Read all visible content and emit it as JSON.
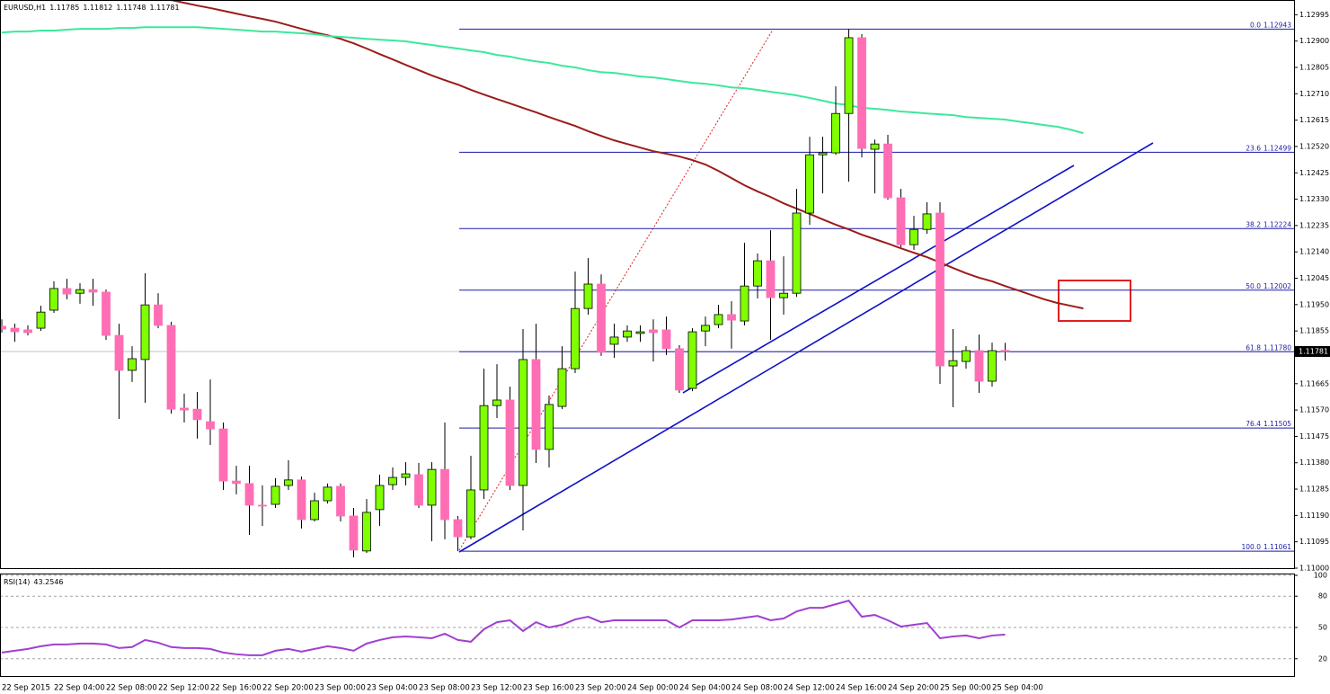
{
  "chart_data": [
    {
      "type": "candlestick",
      "symbol": "EURUSD,H1",
      "categories": [
        "22 Sep 2015",
        null,
        null,
        null,
        "22 Sep 04:00",
        null,
        null,
        null,
        "22 Sep 08:00",
        null,
        null,
        null,
        "22 Sep 12:00",
        null,
        null,
        null,
        "22 Sep 16:00",
        null,
        null,
        null,
        "22 Sep 20:00",
        null,
        null,
        null,
        "23 Sep 00:00",
        null,
        null,
        null,
        "23 Sep 04:00",
        null,
        null,
        null,
        "23 Sep 08:00",
        null,
        null,
        null,
        "23 Sep 12:00",
        null,
        null,
        null,
        "23 Sep 16:00",
        null,
        null,
        null,
        "23 Sep 20:00",
        null,
        null,
        null,
        "24 Sep 00:00",
        null,
        null,
        null,
        "24 Sep 04:00",
        null,
        null,
        null,
        "24 Sep 08:00",
        null,
        null,
        null,
        "24 Sep 12:00",
        null,
        null,
        null,
        "24 Sep 16:00",
        null,
        null,
        null,
        "24 Sep 20:00",
        null,
        null,
        null,
        "25 Sep 00:00",
        null,
        null,
        null,
        "25 Sep 04:00",
        null,
        null,
        null,
        null,
        null,
        null,
        null
      ],
      "open": [
        1.11872,
        1.11865,
        1.11859,
        1.11865,
        1.1193,
        1.12008,
        1.11991,
        1.12004,
        1.11995,
        1.11839,
        1.11713,
        1.11752,
        1.11949,
        1.11875,
        1.11577,
        1.11573,
        1.11528,
        1.11502,
        1.11314,
        1.11305,
        1.11227,
        1.1123,
        1.11298,
        1.11318,
        1.11175,
        1.11243,
        1.11295,
        1.11188,
        1.11062,
        1.11211,
        1.11301,
        1.11327,
        1.11337,
        1.11227,
        1.11356,
        1.11175,
        1.11113,
        1.11282,
        1.11586,
        1.11606,
        1.11298,
        1.11752,
        1.11428,
        1.11583,
        1.11719,
        1.11936,
        1.12024,
        1.11807,
        1.11833,
        1.11846,
        1.11859,
        1.11859,
        1.11791,
        1.11648,
        1.11855,
        1.11878,
        1.11914,
        1.11891,
        1.12017,
        1.12108,
        1.11975,
        1.11991,
        1.1228,
        1.1249,
        1.12497,
        1.12639,
        1.12912,
        1.1251,
        1.12529,
        1.12335,
        1.12166,
        1.12221,
        1.1228,
        1.11729,
        1.11745,
        1.11784,
        1.11674,
        1.11785,
        null,
        null,
        null,
        null,
        null,
        null
      ],
      "high": [
        1.11897,
        1.11881,
        1.11875,
        1.11946,
        1.12034,
        1.12043,
        1.12027,
        1.12043,
        1.12004,
        1.11881,
        1.118,
        1.12063,
        1.11991,
        1.11888,
        1.11629,
        1.11635,
        1.1168,
        1.11525,
        1.11369,
        1.11369,
        1.11298,
        1.11324,
        1.11389,
        1.1133,
        1.11272,
        1.11305,
        1.11305,
        1.11217,
        1.11249,
        1.11337,
        1.11363,
        1.11382,
        1.11379,
        1.11382,
        1.11525,
        1.11188,
        1.11405,
        1.11719,
        1.11735,
        1.11654,
        1.11862,
        1.11881,
        1.11622,
        1.118,
        1.12069,
        1.12118,
        1.12059,
        1.11881,
        1.11875,
        1.11875,
        1.11897,
        1.11907,
        1.11804,
        1.11865,
        1.11907,
        1.11949,
        1.11962,
        1.12173,
        1.12134,
        1.12218,
        1.12124,
        1.12367,
        1.12555,
        1.12555,
        1.12737,
        1.12943,
        1.12925,
        1.12545,
        1.12562,
        1.12367,
        1.1227,
        1.12319,
        1.12319,
        1.11862,
        1.118,
        1.11842,
        1.11813,
        1.11812,
        null,
        null,
        null,
        null,
        null,
        null
      ],
      "low": [
        1.11849,
        1.11816,
        1.11839,
        1.11855,
        1.1192,
        1.11969,
        1.11953,
        1.11946,
        1.11823,
        1.11538,
        1.11671,
        1.11596,
        1.11865,
        1.11557,
        1.11525,
        1.11467,
        1.11444,
        1.11282,
        1.11266,
        1.1112,
        1.11152,
        1.11217,
        1.11282,
        1.11143,
        1.11168,
        1.11233,
        1.11168,
        1.11039,
        1.11055,
        1.11152,
        1.11282,
        1.11298,
        1.11217,
        1.11097,
        1.11104,
        1.11061,
        1.11104,
        1.11249,
        1.11541,
        1.11282,
        1.11136,
        1.11379,
        1.11363,
        1.11573,
        1.11703,
        1.11914,
        1.11765,
        1.11758,
        1.11816,
        1.11816,
        1.11745,
        1.11768,
        1.11632,
        1.11638,
        1.118,
        1.11865,
        1.11791,
        1.11875,
        1.11972,
        1.11823,
        1.11914,
        1.11978,
        1.12238,
        1.12351,
        1.1249,
        1.12393,
        1.12481,
        1.12351,
        1.12328,
        1.12157,
        1.12147,
        1.12205,
        1.11664,
        1.1158,
        1.11719,
        1.11632,
        1.11654,
        1.11748,
        null,
        null,
        null,
        null,
        null,
        null
      ],
      "close": [
        1.11862,
        1.11852,
        1.11849,
        1.11923,
        1.12008,
        1.11988,
        1.12004,
        1.11995,
        1.11839,
        1.11713,
        1.11755,
        1.11949,
        1.11875,
        1.11573,
        1.1157,
        1.11535,
        1.11502,
        1.11314,
        1.11305,
        1.11227,
        1.11224,
        1.11295,
        1.11318,
        1.11175,
        1.11243,
        1.11292,
        1.11188,
        1.11065,
        1.11201,
        1.11298,
        1.11327,
        1.1134,
        1.11227,
        1.11356,
        1.11175,
        1.11113,
        1.11282,
        1.11586,
        1.11606,
        1.11298,
        1.11752,
        1.11428,
        1.1159,
        1.11719,
        1.11936,
        1.12024,
        1.11778,
        1.11833,
        1.11855,
        1.11852,
        1.11849,
        1.11791,
        1.11642,
        1.11852,
        1.11875,
        1.11914,
        1.11894,
        1.12017,
        1.12108,
        1.11975,
        1.11991,
        1.1228,
        1.1249,
        1.12497,
        1.12639,
        1.12912,
        1.12513,
        1.12529,
        1.12335,
        1.12166,
        1.12221,
        1.12277,
        1.11729,
        1.11748,
        1.11784,
        1.11674,
        1.11784,
        1.11781,
        null,
        null,
        null,
        null,
        null,
        null
      ],
      "up_color": "#80ff00",
      "down_color": "#ff6eb4",
      "wick_color": "#000000",
      "series": [
        {
          "color": "#9b1c1c",
          "values": [
            null,
            null,
            null,
            null,
            null,
            null,
            null,
            null,
            null,
            null,
            null,
            null,
            null,
            1.13048,
            1.13038,
            1.13028,
            1.13019,
            1.13009,
            1.12999,
            1.12989,
            1.1298,
            1.1297,
            1.12957,
            1.12944,
            1.12931,
            1.12921,
            1.12908,
            1.12892,
            1.12873,
            1.12853,
            1.12834,
            1.12814,
            1.12795,
            1.12776,
            1.12759,
            1.12743,
            1.12724,
            1.12707,
            1.12691,
            1.12675,
            1.12659,
            1.12643,
            1.12626,
            1.1261,
            1.12594,
            1.12575,
            1.12558,
            1.12542,
            1.12529,
            1.12516,
            1.12503,
            1.12494,
            1.12484,
            1.12471,
            1.12455,
            1.12432,
            1.12406,
            1.1238,
            1.12358,
            1.12338,
            1.12315,
            1.12296,
            1.12277,
            1.12257,
            1.12238,
            1.12221,
            1.12202,
            1.12186,
            1.1217,
            1.12153,
            1.12137,
            1.12121,
            1.12102,
            1.12082,
            1.12063,
            1.12047,
            1.12034,
            1.12017,
            1.12001,
            1.11985,
            1.11969,
            1.11956,
            1.11946,
            1.11936
          ]
        },
        {
          "color": "#3de89a",
          "values": [
            1.12931,
            1.12934,
            1.12934,
            1.12938,
            1.12938,
            1.12941,
            1.12944,
            1.12944,
            1.12944,
            1.12947,
            1.12947,
            1.1295,
            1.1295,
            1.1295,
            1.1295,
            1.1295,
            1.12947,
            1.12944,
            1.12941,
            1.12938,
            1.12934,
            1.12934,
            1.12931,
            1.12928,
            1.12925,
            1.12918,
            1.12915,
            1.12912,
            1.12908,
            1.12905,
            1.12902,
            1.12899,
            1.12892,
            1.12886,
            1.12879,
            1.12873,
            1.12866,
            1.1286,
            1.1285,
            1.12844,
            1.12834,
            1.12827,
            1.12821,
            1.12811,
            1.12805,
            1.12795,
            1.12788,
            1.12785,
            1.12779,
            1.12772,
            1.12769,
            1.12763,
            1.12756,
            1.1275,
            1.12746,
            1.1274,
            1.12733,
            1.1273,
            1.12724,
            1.12717,
            1.12711,
            1.12704,
            1.12695,
            1.12685,
            1.12675,
            1.12669,
            1.12659,
            1.12656,
            1.12652,
            1.12646,
            1.12643,
            1.12639,
            1.12636,
            1.12633,
            1.12626,
            1.12623,
            1.1262,
            1.12617,
            1.1261,
            1.12604,
            1.12597,
            1.12591,
            1.12581,
            1.12568
          ]
        }
      ],
      "fib_levels": [
        {
          "level": "0.0",
          "value": 1.12943
        },
        {
          "level": "23.6",
          "value": 1.12499
        },
        {
          "level": "38.2",
          "value": 1.12224
        },
        {
          "level": "50.0",
          "value": 1.12002
        },
        {
          "level": "61.8",
          "value": 1.1178,
          "label": "1.11780"
        },
        {
          "level": "76.4",
          "value": 1.11505
        },
        {
          "level": "100.0",
          "value": 1.11061
        }
      ],
      "fib_color": "#1c1ca8",
      "ylim": [
        1.11,
        1.13048
      ],
      "yticks": [
        1.12995,
        {
          "value": 1.129,
          "label": "1.12900"
        },
        1.12805,
        {
          "value": 1.1271,
          "label": "1.12710"
        },
        1.12615,
        {
          "value": 1.1252,
          "label": "1.12520"
        },
        1.12425,
        {
          "value": 1.1233,
          "label": "1.12330"
        },
        1.12235,
        {
          "value": 1.1214,
          "label": "1.12140"
        },
        1.12045,
        {
          "value": 1.1195,
          "label": "1.11950"
        },
        1.11855,
        1.11665,
        {
          "value": 1.1157,
          "label": "1.11570"
        },
        1.11475,
        {
          "value": 1.1138,
          "label": "1.11380"
        },
        1.11285,
        {
          "value": 1.1119,
          "label": "1.11190"
        },
        1.11095,
        {
          "value": 1.11,
          "label": "1.11000"
        }
      ]
    },
    {
      "type": "line",
      "title": "RSI(14)",
      "color": "#a040d0",
      "values": [
        26.0,
        27.7,
        29.4,
        32.0,
        33.7,
        33.7,
        34.6,
        34.6,
        33.7,
        30.3,
        31.2,
        38.0,
        35.4,
        31.2,
        30.3,
        30.3,
        29.4,
        26.0,
        24.3,
        23.4,
        23.4,
        27.7,
        29.4,
        26.9,
        29.4,
        32.0,
        30.3,
        27.7,
        34.6,
        38.0,
        40.6,
        41.4,
        40.6,
        39.7,
        44.0,
        38.0,
        36.3,
        48.3,
        55.1,
        56.9,
        46.6,
        55.1,
        50.0,
        52.6,
        57.7,
        60.3,
        55.1,
        56.9,
        56.9,
        56.9,
        56.9,
        56.9,
        50.0,
        56.9,
        56.9,
        56.9,
        57.7,
        59.4,
        61.1,
        56.9,
        58.6,
        65.4,
        68.9,
        68.9,
        72.3,
        75.7,
        60.3,
        62.0,
        56.9,
        50.9,
        52.6,
        54.3,
        39.7,
        41.4,
        42.3,
        39.7,
        42.3,
        43.2546
      ],
      "ylim": [
        0,
        100
      ],
      "yticks": [
        20,
        50,
        80,
        100
      ],
      "grid": true
    }
  ]
}
